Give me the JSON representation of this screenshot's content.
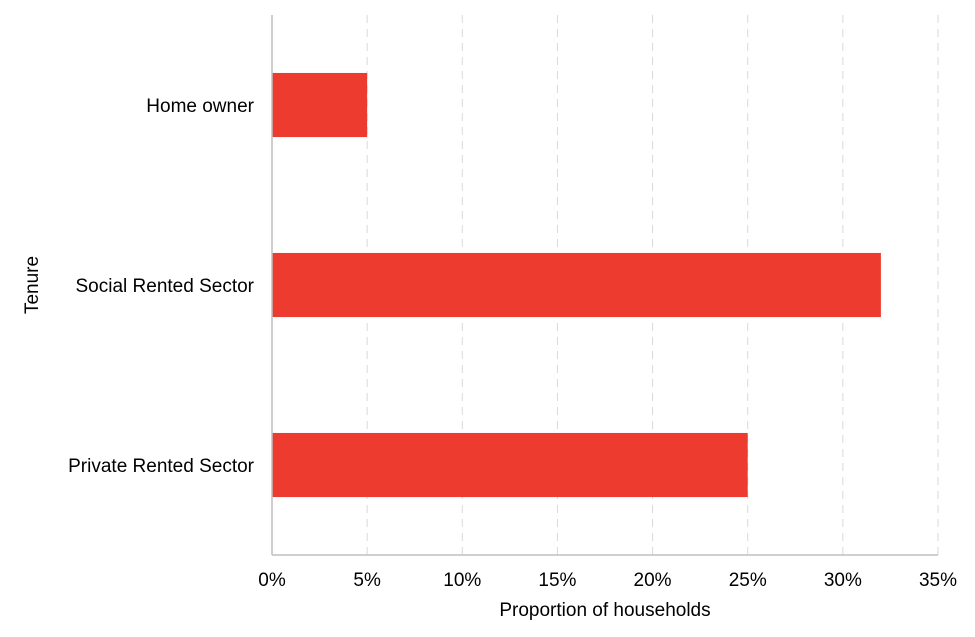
{
  "chart_data": {
    "type": "bar",
    "orientation": "horizontal",
    "categories": [
      "Home owner",
      "Social Rented Sector",
      "Private Rented Sector"
    ],
    "values": [
      5,
      32,
      25
    ],
    "xlabel": "Proportion of households",
    "ylabel": "Tenure",
    "xlim": [
      0,
      35
    ],
    "xticks": [
      0,
      5,
      10,
      15,
      20,
      25,
      30,
      35
    ],
    "xtick_labels": [
      "0%",
      "5%",
      "10%",
      "15%",
      "20%",
      "25%",
      "30%",
      "35%"
    ],
    "grid": "vertical dashed",
    "legend": "none",
    "bar_color": "#ee3b2f",
    "grid_color": "#d9d9d9",
    "axis_color": "#bfbfbf"
  }
}
